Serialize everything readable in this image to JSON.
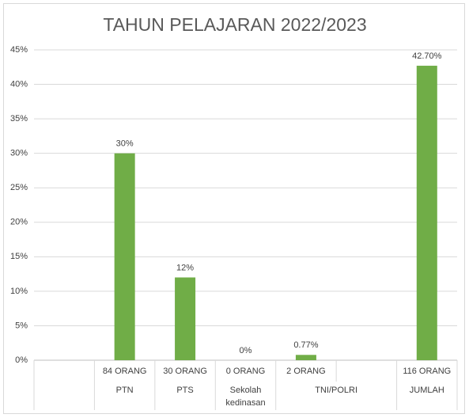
{
  "chart_data": {
    "type": "bar",
    "title": "TAHUN PELAJARAN 2022/2023",
    "categories": [
      null,
      "84 ORANG",
      "30 ORANG",
      "0 ORANG",
      "2 ORANG",
      null,
      "116 ORANG"
    ],
    "category_groups": [
      {
        "label": null,
        "size": 1
      },
      {
        "label": "PTN",
        "size": 1
      },
      {
        "label": "PTS",
        "size": 1
      },
      {
        "label": "Sekolah kedinasan",
        "size": 1
      },
      {
        "label": "TNI/POLRI",
        "size": 2
      },
      {
        "label": "JUMLAH",
        "size": 1
      }
    ],
    "values": [
      null,
      30,
      12,
      0,
      0.77,
      null,
      42.7
    ],
    "value_labels": [
      null,
      "30%",
      "12%",
      "0%",
      "0.77%",
      null,
      "42.70%"
    ],
    "color": "#70ad47",
    "ylim": [
      0,
      45
    ],
    "yticks": [
      {
        "value": 0,
        "label": "0%"
      },
      {
        "value": 5,
        "label": "5%"
      },
      {
        "value": 10,
        "label": "10%"
      },
      {
        "value": 15,
        "label": "15%"
      },
      {
        "value": 20,
        "label": "20%"
      },
      {
        "value": 25,
        "label": "25%"
      },
      {
        "value": 30,
        "label": "30%"
      },
      {
        "value": 35,
        "label": "35%"
      },
      {
        "value": 40,
        "label": "40%"
      },
      {
        "value": 45,
        "label": "45%"
      }
    ],
    "grid": true
  }
}
